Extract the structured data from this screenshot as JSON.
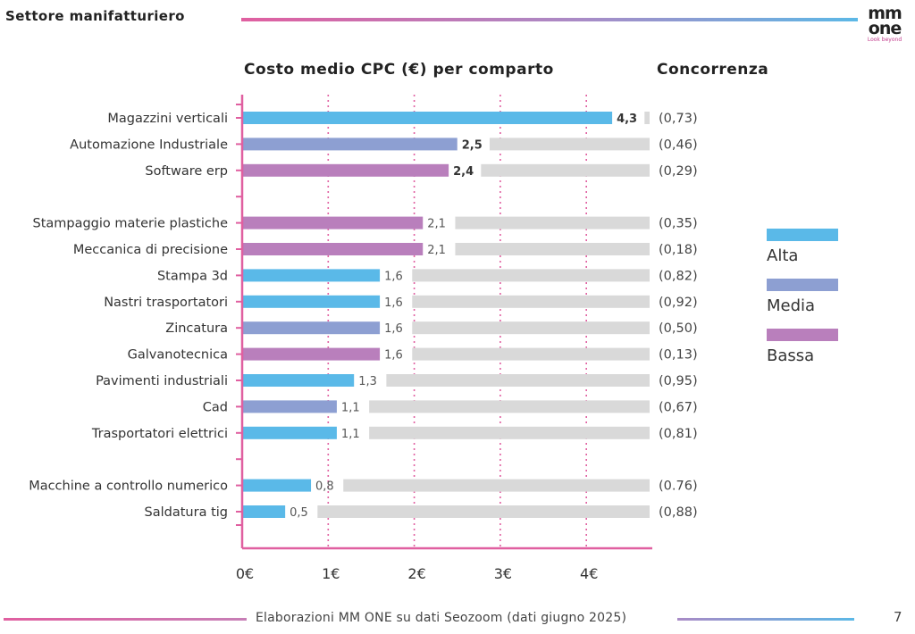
{
  "header": {
    "title": "Settore manifatturiero"
  },
  "logo": {
    "line1": "mm",
    "line2": "one",
    "tagline": "Look beyond"
  },
  "chart_data": {
    "type": "bar",
    "orientation": "horizontal",
    "title": "Costo medio CPC (€) per comparto",
    "competition_title": "Concorrenza",
    "xlim": [
      0,
      4.8
    ],
    "x_ticks": [
      0,
      1,
      2,
      3,
      4
    ],
    "x_tick_labels": [
      "0€",
      "1€",
      "2€",
      "3€",
      "4€"
    ],
    "categories": [
      {
        "label": "Magazzini verticali",
        "value": 4.3,
        "value_label": "4,3",
        "bold": true,
        "competition": "(0,73)",
        "level": "Alta",
        "color": "#5ab9e8"
      },
      {
        "label": "Automazione Industriale",
        "value": 2.5,
        "value_label": "2,5",
        "bold": true,
        "competition": "(0,46)",
        "level": "Media",
        "color": "#8d9fd2"
      },
      {
        "label": "Software erp",
        "value": 2.4,
        "value_label": "2,4",
        "bold": true,
        "competition": "(0,29)",
        "level": "Bassa",
        "color": "#b97fbc"
      },
      {
        "label": "Stampaggio materie plastiche",
        "value": 2.1,
        "value_label": "2,1",
        "bold": false,
        "competition": "(0,35)",
        "level": "Bassa",
        "color": "#b97fbc"
      },
      {
        "label": "Meccanica di precisione",
        "value": 2.1,
        "value_label": "2,1",
        "bold": false,
        "competition": "(0,18)",
        "level": "Bassa",
        "color": "#b97fbc"
      },
      {
        "label": "Stampa 3d",
        "value": 1.6,
        "value_label": "1,6",
        "bold": false,
        "competition": "(0,82)",
        "level": "Alta",
        "color": "#5ab9e8"
      },
      {
        "label": "Nastri trasportatori",
        "value": 1.6,
        "value_label": "1,6",
        "bold": false,
        "competition": "(0,92)",
        "level": "Alta",
        "color": "#5ab9e8"
      },
      {
        "label": "Zincatura",
        "value": 1.6,
        "value_label": "1,6",
        "bold": false,
        "competition": "(0,50)",
        "level": "Media",
        "color": "#8d9fd2"
      },
      {
        "label": "Galvanotecnica",
        "value": 1.6,
        "value_label": "1,6",
        "bold": false,
        "competition": "(0,13)",
        "level": "Bassa",
        "color": "#b97fbc"
      },
      {
        "label": "Pavimenti industriali",
        "value": 1.3,
        "value_label": "1,3",
        "bold": false,
        "competition": "(0,95)",
        "level": "Alta",
        "color": "#5ab9e8"
      },
      {
        "label": "Cad",
        "value": 1.1,
        "value_label": "1,1",
        "bold": false,
        "competition": "(0,67)",
        "level": "Media",
        "color": "#8d9fd2"
      },
      {
        "label": "Trasportatori elettrici",
        "value": 1.1,
        "value_label": "1,1",
        "bold": false,
        "competition": "(0,81)",
        "level": "Alta",
        "color": "#5ab9e8"
      },
      {
        "label": "Macchine a controllo numerico",
        "value": 0.8,
        "value_label": "0,8",
        "bold": false,
        "competition": "(0.76)",
        "level": "Alta",
        "color": "#5ab9e8"
      },
      {
        "label": "Saldatura tig",
        "value": 0.5,
        "value_label": "0,5",
        "bold": false,
        "competition": "(0,88)",
        "level": "Alta",
        "color": "#5ab9e8"
      }
    ],
    "groups": [
      3,
      9,
      2
    ],
    "legend": [
      {
        "label": "Alta",
        "color": "#5ab9e8"
      },
      {
        "label": "Media",
        "color": "#8d9fd2"
      },
      {
        "label": "Bassa",
        "color": "#b97fbc"
      }
    ],
    "legend_position": "right",
    "gridlines": "dotted"
  },
  "footer": {
    "source": "Elaborazioni MM ONE su dati Seozoom (dati giugno 2025)",
    "page": "7"
  },
  "colors": {
    "axis": "#e05fa0",
    "track": "#d9d9d9",
    "grid": "#e05fa0"
  }
}
